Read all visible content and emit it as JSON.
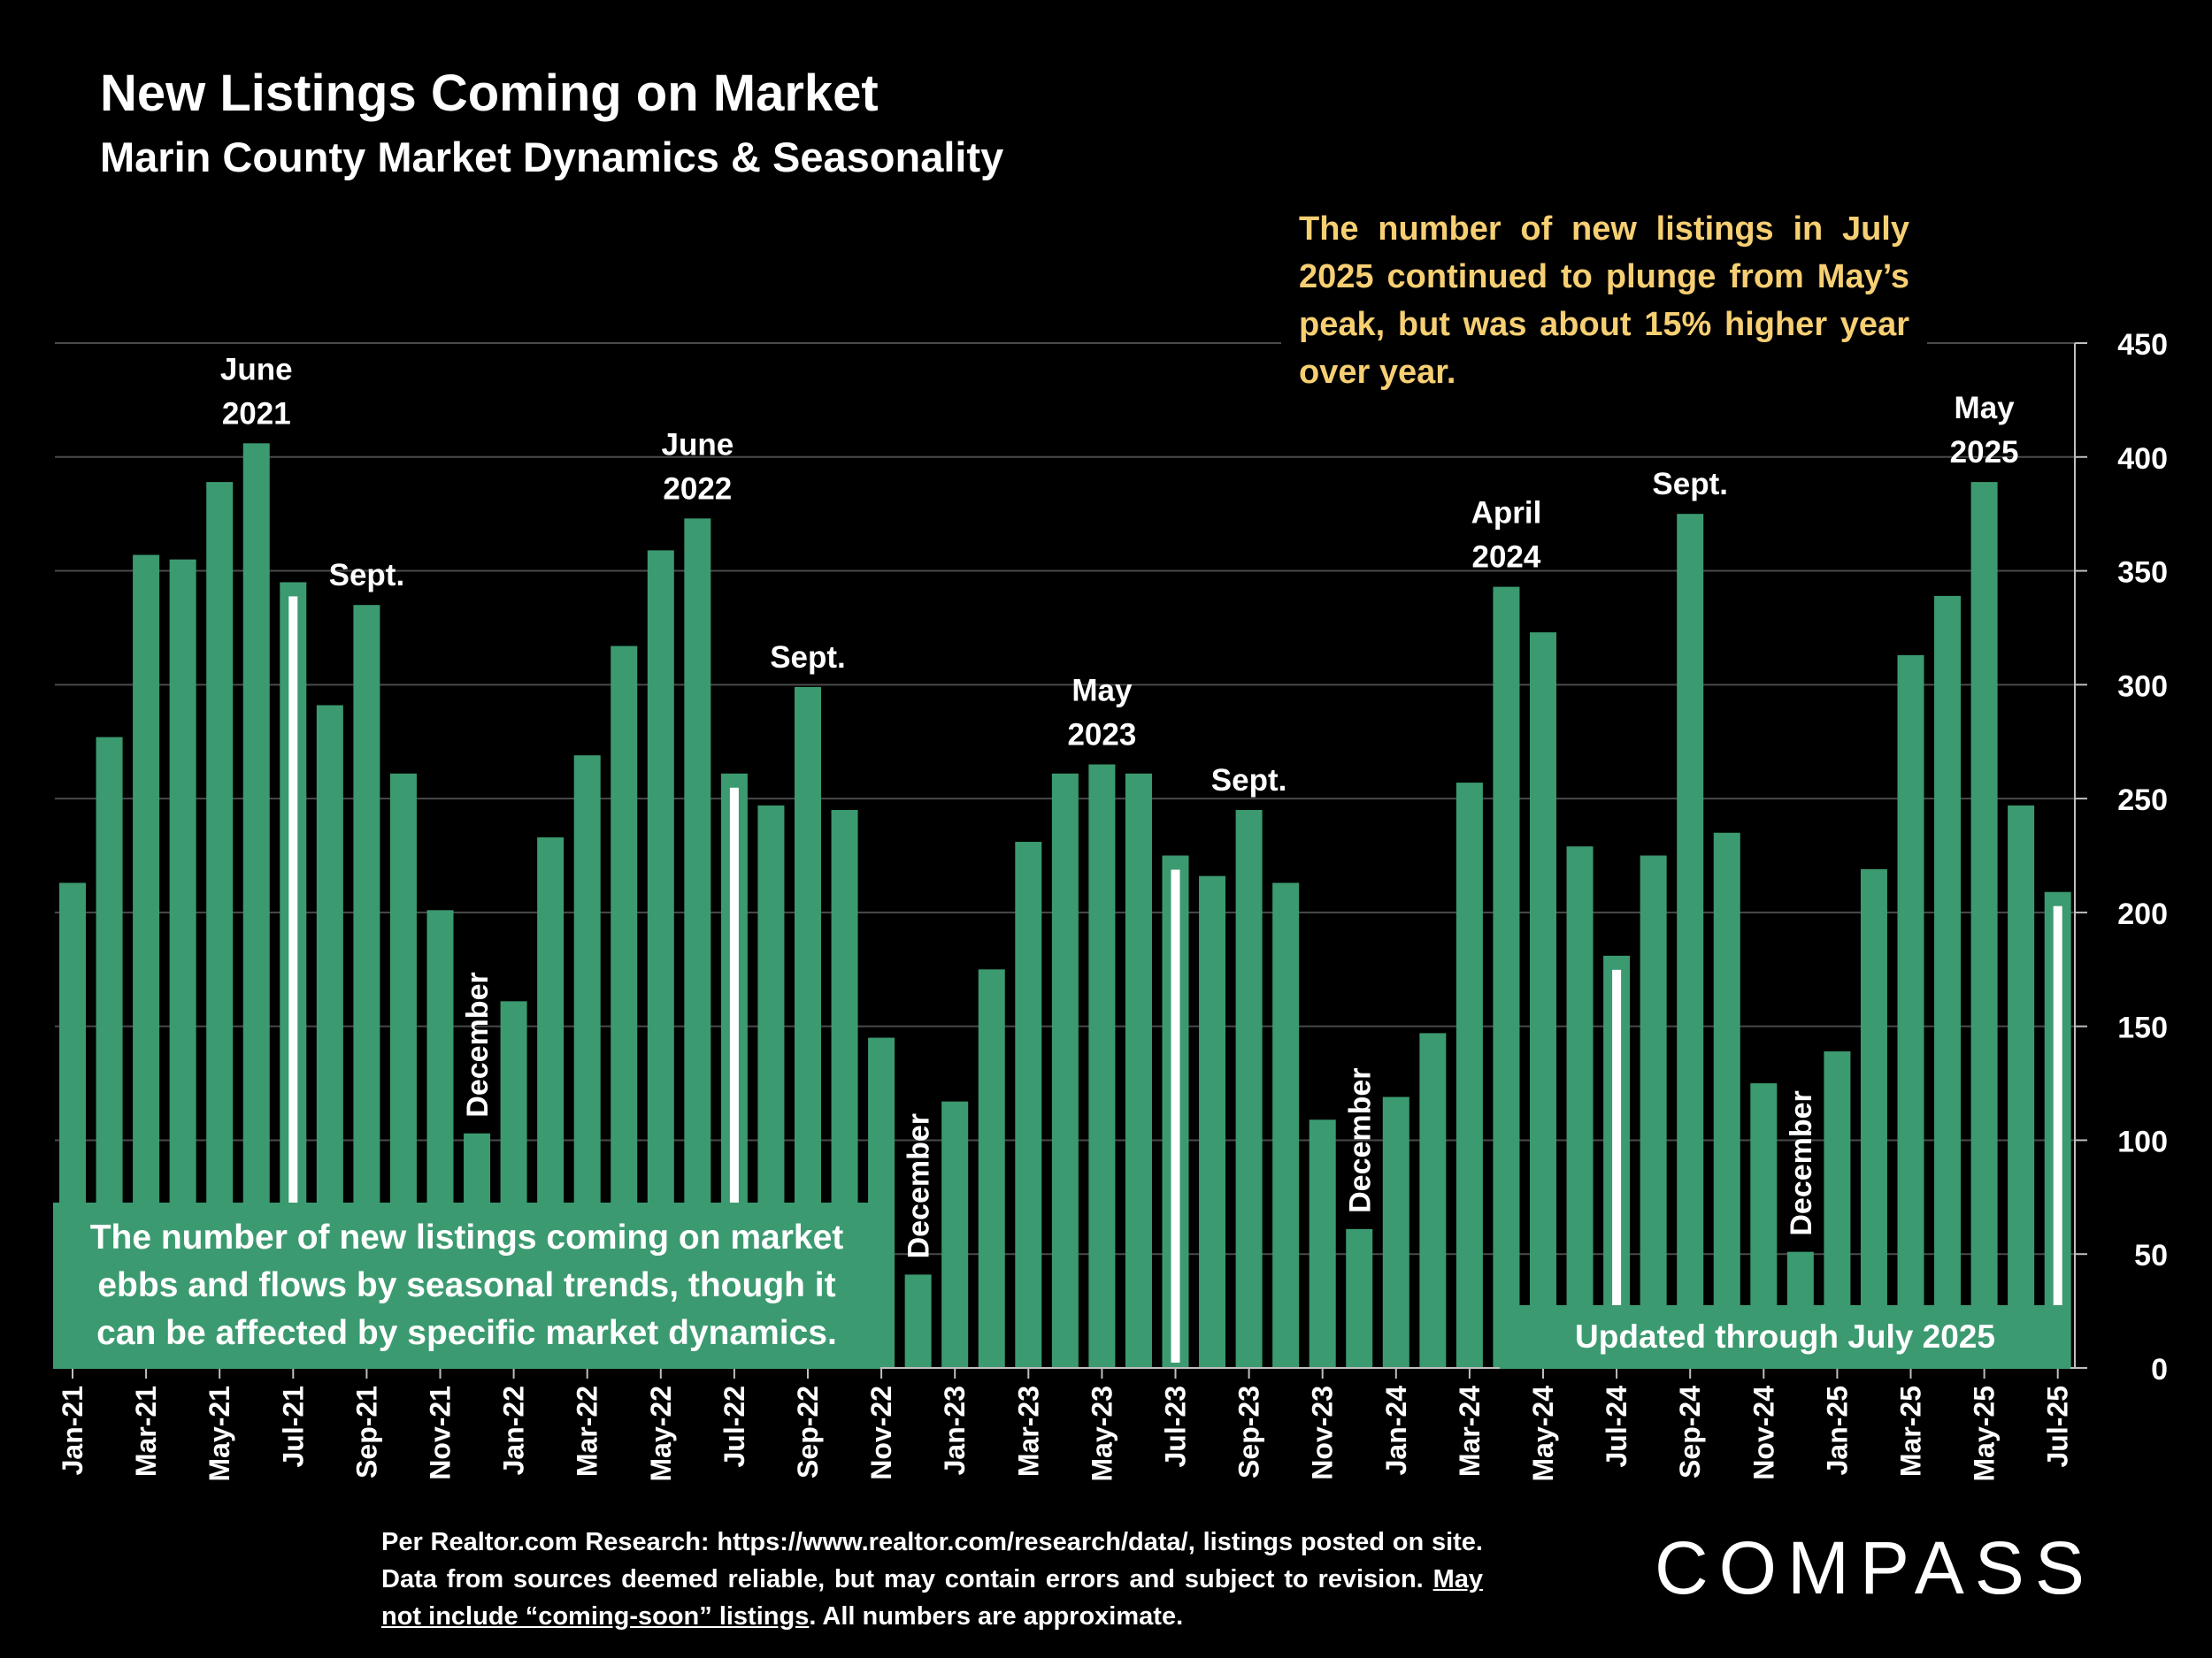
{
  "header": {
    "title": "New Listings Coming on Market",
    "subtitle": "Marin County Market Dynamics & Seasonality"
  },
  "callout_top": "The number of new listings in July 2025 continued to plunge from May’s peak, but was about 15% higher year over year.",
  "note_box": "The number of new listings coming on market ebbs and flows by seasonal trends, though it can be affected by specific market dynamics.",
  "updated_label": "Updated through July 2025",
  "footnote": {
    "text_1": "Per Realtor.com Research:  https://www.realtor.com/research/data/, listings posted on site. Data from sources deemed reliable, but may contain errors and subject to revision. ",
    "underlined": "May not include “coming-soon” listings",
    "text_2": ". All numbers are approximate."
  },
  "logo": "COMPASS",
  "colors": {
    "bar": "#3c9a70",
    "highlight_stripe": "#ffffff",
    "callout_text": "#f7cf73",
    "background": "#000000"
  },
  "chart_data": {
    "type": "bar",
    "title": "New Listings Coming on Market",
    "xlabel": "",
    "ylabel": "",
    "ylim": [
      0,
      450
    ],
    "y_ticks": [
      0,
      50,
      100,
      150,
      200,
      250,
      300,
      350,
      400,
      450
    ],
    "grid": true,
    "y_axis_side": "right",
    "categories": [
      "Jan-21",
      "Feb-21",
      "Mar-21",
      "Apr-21",
      "May-21",
      "Jun-21",
      "Jul-21",
      "Aug-21",
      "Sep-21",
      "Oct-21",
      "Nov-21",
      "Dec-21",
      "Jan-22",
      "Feb-22",
      "Mar-22",
      "Apr-22",
      "May-22",
      "Jun-22",
      "Jul-22",
      "Aug-22",
      "Sep-22",
      "Oct-22",
      "Nov-22",
      "Dec-22",
      "Jan-23",
      "Feb-23",
      "Mar-23",
      "Apr-23",
      "May-23",
      "Jun-23",
      "Jul-23",
      "Aug-23",
      "Sep-23",
      "Oct-23",
      "Nov-23",
      "Dec-23",
      "Jan-24",
      "Feb-24",
      "Mar-24",
      "Apr-24",
      "May-24",
      "Jun-24",
      "Jul-24",
      "Aug-24",
      "Sep-24",
      "Oct-24",
      "Nov-24",
      "Dec-24",
      "Jan-25",
      "Feb-25",
      "Mar-25",
      "Apr-25",
      "May-25",
      "Jun-25",
      "Jul-25"
    ],
    "values": [
      213,
      277,
      357,
      355,
      389,
      406,
      345,
      291,
      335,
      261,
      201,
      103,
      161,
      233,
      269,
      317,
      359,
      373,
      261,
      247,
      299,
      245,
      145,
      41,
      117,
      175,
      231,
      261,
      265,
      261,
      225,
      216,
      245,
      213,
      109,
      61,
      119,
      147,
      257,
      343,
      323,
      229,
      181,
      225,
      375,
      235,
      125,
      51,
      139,
      219,
      313,
      339,
      389,
      247,
      209
    ],
    "x_tick_labels": [
      "Jan-21",
      "Mar-21",
      "May-21",
      "Jul-21",
      "Sep-21",
      "Nov-21",
      "Jan-22",
      "Mar-22",
      "May-22",
      "Jul-22",
      "Sep-22",
      "Nov-22",
      "Jan-23",
      "Mar-23",
      "May-23",
      "Jul-23",
      "Sep-23",
      "Nov-23",
      "Jan-24",
      "Mar-24",
      "May-24",
      "Jul-24",
      "Sep-24",
      "Nov-24",
      "Jan-25",
      "Mar-25",
      "May-25",
      "Jul-25"
    ],
    "highlighted_months": [
      "Jul-21",
      "Jul-22",
      "Jul-23",
      "Jul-24",
      "Jul-25"
    ],
    "annotations": [
      {
        "category": "Jun-21",
        "lines": [
          "June",
          "2021"
        ],
        "style": "above"
      },
      {
        "category": "Sep-21",
        "lines": [
          "Sept."
        ],
        "style": "above"
      },
      {
        "category": "Dec-21",
        "lines": [
          "December"
        ],
        "style": "vertical"
      },
      {
        "category": "Jun-22",
        "lines": [
          "June",
          "2022"
        ],
        "style": "above"
      },
      {
        "category": "Sep-22",
        "lines": [
          "Sept."
        ],
        "style": "above"
      },
      {
        "category": "Dec-22",
        "lines": [
          "December"
        ],
        "style": "vertical"
      },
      {
        "category": "May-23",
        "lines": [
          "May",
          "2023"
        ],
        "style": "above"
      },
      {
        "category": "Sep-23",
        "lines": [
          "Sept."
        ],
        "style": "above"
      },
      {
        "category": "Dec-23",
        "lines": [
          "December"
        ],
        "style": "vertical"
      },
      {
        "category": "Apr-24",
        "lines": [
          "April",
          "2024"
        ],
        "style": "above"
      },
      {
        "category": "Sep-24",
        "lines": [
          "Sept."
        ],
        "style": "above"
      },
      {
        "category": "Dec-24",
        "lines": [
          "December"
        ],
        "style": "vertical"
      },
      {
        "category": "May-25",
        "lines": [
          "May",
          "2025"
        ],
        "style": "above"
      }
    ]
  }
}
